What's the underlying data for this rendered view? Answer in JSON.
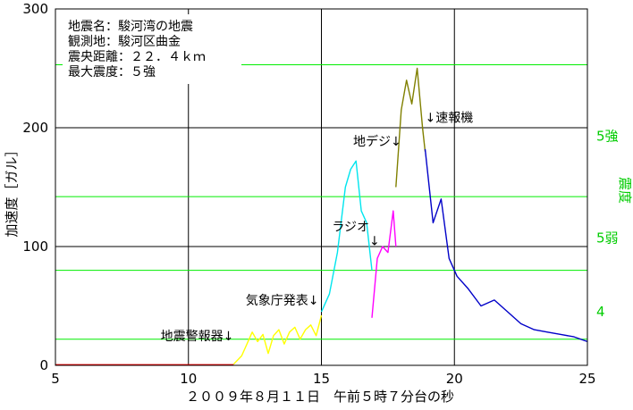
{
  "chart_data": {
    "type": "line",
    "xlabel": "２００９年８月１１日　午前５時７分台の秒",
    "ylabel": "加速度［ガル］",
    "y2label": "震度",
    "xlim": [
      5,
      25
    ],
    "ylim": [
      0,
      300
    ],
    "x_ticks": [
      5,
      10,
      15,
      20,
      25
    ],
    "y_ticks": [
      0,
      100,
      200,
      300
    ],
    "grid": true,
    "info_box": [
      "地震名：駿河湾の地震",
      "観測地：駿河区曲金",
      "震央距離：２２．４ｋｍ",
      "最大震度：５強"
    ],
    "intensity_lines": [
      {
        "label": "",
        "value": 22
      },
      {
        "label": "4",
        "value": 80
      },
      {
        "label": "5弱",
        "value": 142
      },
      {
        "label": "5強",
        "value": 253
      }
    ],
    "intensity_labels": [
      {
        "label": "5強",
        "value": 193
      },
      {
        "label": "5弱",
        "value": 107
      },
      {
        "label": "4",
        "value": 45
      }
    ],
    "annotations": [
      {
        "text": "地震警報器↓",
        "x": 11.7,
        "y": 21
      },
      {
        "text": "気象庁発表↓",
        "x": 14.9,
        "y": 51
      },
      {
        "text": "ラジオ",
        "x": 16.8,
        "y": 113
      },
      {
        "text": "↓",
        "x": 16.8,
        "y": 101
      },
      {
        "text": "地デジ↓",
        "x": 18.0,
        "y": 185
      },
      {
        "text": "↓速報機",
        "x": 18.9,
        "y": 205
      }
    ],
    "series": [
      {
        "color": "#ff0000",
        "x": [
          5.0,
          11.7
        ],
        "y": [
          0.5,
          0.5
        ]
      },
      {
        "color": "#ffff00",
        "x": [
          11.7,
          12.0,
          12.2,
          12.4,
          12.6,
          12.8,
          13.0,
          13.2,
          13.4,
          13.6,
          13.8,
          14.0,
          14.2,
          14.4,
          14.6,
          14.8,
          15.0
        ],
        "y": [
          1,
          8,
          18,
          28,
          20,
          26,
          10,
          25,
          30,
          18,
          28,
          32,
          22,
          30,
          34,
          25,
          42
        ]
      },
      {
        "color": "#00e5ee",
        "x": [
          15.0,
          15.3,
          15.6,
          15.9,
          16.1,
          16.3,
          16.5,
          16.7,
          16.9
        ],
        "y": [
          45,
          60,
          95,
          150,
          165,
          172,
          130,
          120,
          80
        ]
      },
      {
        "color": "#ff00ff",
        "x": [
          16.9,
          17.1,
          17.3,
          17.5,
          17.7,
          17.8
        ],
        "y": [
          40,
          90,
          100,
          95,
          130,
          100
        ]
      },
      {
        "color": "#808000",
        "x": [
          17.8,
          18.0,
          18.2,
          18.4,
          18.6,
          18.8,
          18.9
        ],
        "y": [
          150,
          215,
          240,
          220,
          250,
          200,
          180
        ]
      },
      {
        "color": "#0000c8",
        "x": [
          18.9,
          19.2,
          19.5,
          19.8,
          20.1,
          20.5,
          21.0,
          21.5,
          22.0,
          22.5,
          23.0,
          23.5,
          24.0,
          24.5,
          25.0
        ],
        "y": [
          182,
          120,
          140,
          90,
          75,
          65,
          50,
          55,
          45,
          35,
          30,
          28,
          26,
          24,
          20
        ]
      }
    ]
  }
}
